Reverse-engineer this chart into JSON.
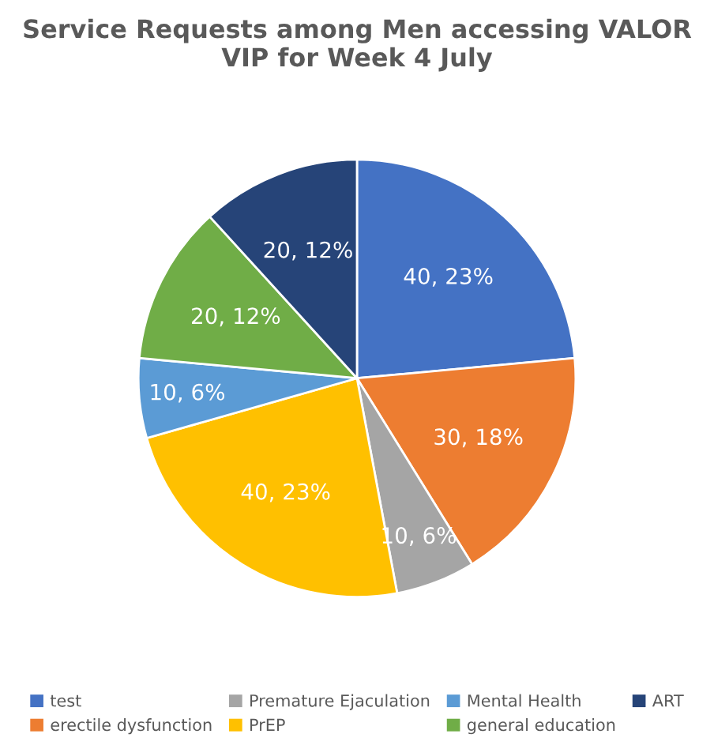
{
  "chart_data": {
    "type": "pie",
    "title": "Service Requests among Men accessing VALOR VIP for Week 4 July",
    "categories": [
      "test",
      "erectile dysfunction",
      "Premature Ejaculation",
      "PrEP",
      "Mental Health",
      "general education",
      "ART"
    ],
    "values": [
      40,
      30,
      10,
      40,
      10,
      20,
      20
    ],
    "value_labels": [
      "40, 23%",
      "30, 18%",
      "10, 6%",
      "40, 23%",
      "10, 6%",
      "20, 12%",
      "20, 12%"
    ],
    "colors": [
      "#4472c4",
      "#ed7d31",
      "#a5a5a5",
      "#ffc000",
      "#5b9bd5",
      "#70ad47",
      "#264478"
    ],
    "legend": "bottom"
  }
}
